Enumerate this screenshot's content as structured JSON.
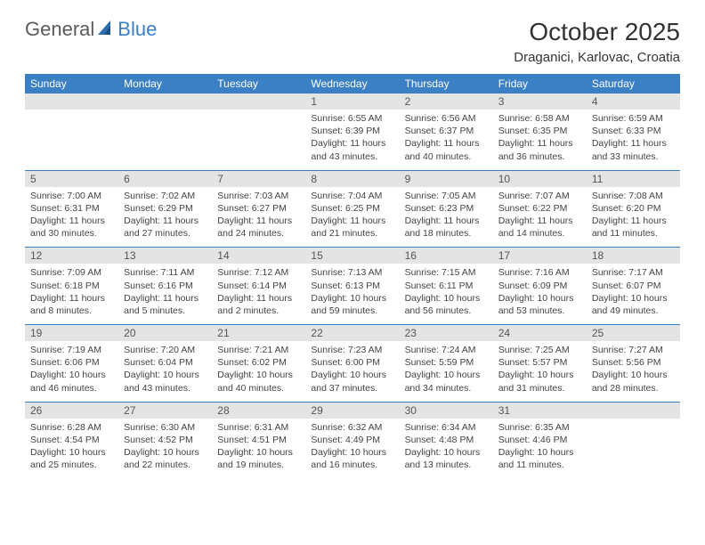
{
  "logo": {
    "general": "General",
    "blue": "Blue"
  },
  "title": "October 2025",
  "location": "Draganici, Karlovac, Croatia",
  "colors": {
    "header_bg": "#3b7fc4",
    "header_fg": "#ffffff",
    "daynum_bg": "#e4e4e4",
    "rule": "#3b7fc4",
    "text": "#444444",
    "logo_gray": "#5a5a5a",
    "logo_blue": "#3b7fc4"
  },
  "weekdays": [
    "Sunday",
    "Monday",
    "Tuesday",
    "Wednesday",
    "Thursday",
    "Friday",
    "Saturday"
  ],
  "weeks": [
    [
      {
        "n": "",
        "sunrise": "",
        "sunset": "",
        "daylight": ""
      },
      {
        "n": "",
        "sunrise": "",
        "sunset": "",
        "daylight": ""
      },
      {
        "n": "",
        "sunrise": "",
        "sunset": "",
        "daylight": ""
      },
      {
        "n": "1",
        "sunrise": "Sunrise: 6:55 AM",
        "sunset": "Sunset: 6:39 PM",
        "daylight": "Daylight: 11 hours and 43 minutes."
      },
      {
        "n": "2",
        "sunrise": "Sunrise: 6:56 AM",
        "sunset": "Sunset: 6:37 PM",
        "daylight": "Daylight: 11 hours and 40 minutes."
      },
      {
        "n": "3",
        "sunrise": "Sunrise: 6:58 AM",
        "sunset": "Sunset: 6:35 PM",
        "daylight": "Daylight: 11 hours and 36 minutes."
      },
      {
        "n": "4",
        "sunrise": "Sunrise: 6:59 AM",
        "sunset": "Sunset: 6:33 PM",
        "daylight": "Daylight: 11 hours and 33 minutes."
      }
    ],
    [
      {
        "n": "5",
        "sunrise": "Sunrise: 7:00 AM",
        "sunset": "Sunset: 6:31 PM",
        "daylight": "Daylight: 11 hours and 30 minutes."
      },
      {
        "n": "6",
        "sunrise": "Sunrise: 7:02 AM",
        "sunset": "Sunset: 6:29 PM",
        "daylight": "Daylight: 11 hours and 27 minutes."
      },
      {
        "n": "7",
        "sunrise": "Sunrise: 7:03 AM",
        "sunset": "Sunset: 6:27 PM",
        "daylight": "Daylight: 11 hours and 24 minutes."
      },
      {
        "n": "8",
        "sunrise": "Sunrise: 7:04 AM",
        "sunset": "Sunset: 6:25 PM",
        "daylight": "Daylight: 11 hours and 21 minutes."
      },
      {
        "n": "9",
        "sunrise": "Sunrise: 7:05 AM",
        "sunset": "Sunset: 6:23 PM",
        "daylight": "Daylight: 11 hours and 18 minutes."
      },
      {
        "n": "10",
        "sunrise": "Sunrise: 7:07 AM",
        "sunset": "Sunset: 6:22 PM",
        "daylight": "Daylight: 11 hours and 14 minutes."
      },
      {
        "n": "11",
        "sunrise": "Sunrise: 7:08 AM",
        "sunset": "Sunset: 6:20 PM",
        "daylight": "Daylight: 11 hours and 11 minutes."
      }
    ],
    [
      {
        "n": "12",
        "sunrise": "Sunrise: 7:09 AM",
        "sunset": "Sunset: 6:18 PM",
        "daylight": "Daylight: 11 hours and 8 minutes."
      },
      {
        "n": "13",
        "sunrise": "Sunrise: 7:11 AM",
        "sunset": "Sunset: 6:16 PM",
        "daylight": "Daylight: 11 hours and 5 minutes."
      },
      {
        "n": "14",
        "sunrise": "Sunrise: 7:12 AM",
        "sunset": "Sunset: 6:14 PM",
        "daylight": "Daylight: 11 hours and 2 minutes."
      },
      {
        "n": "15",
        "sunrise": "Sunrise: 7:13 AM",
        "sunset": "Sunset: 6:13 PM",
        "daylight": "Daylight: 10 hours and 59 minutes."
      },
      {
        "n": "16",
        "sunrise": "Sunrise: 7:15 AM",
        "sunset": "Sunset: 6:11 PM",
        "daylight": "Daylight: 10 hours and 56 minutes."
      },
      {
        "n": "17",
        "sunrise": "Sunrise: 7:16 AM",
        "sunset": "Sunset: 6:09 PM",
        "daylight": "Daylight: 10 hours and 53 minutes."
      },
      {
        "n": "18",
        "sunrise": "Sunrise: 7:17 AM",
        "sunset": "Sunset: 6:07 PM",
        "daylight": "Daylight: 10 hours and 49 minutes."
      }
    ],
    [
      {
        "n": "19",
        "sunrise": "Sunrise: 7:19 AM",
        "sunset": "Sunset: 6:06 PM",
        "daylight": "Daylight: 10 hours and 46 minutes."
      },
      {
        "n": "20",
        "sunrise": "Sunrise: 7:20 AM",
        "sunset": "Sunset: 6:04 PM",
        "daylight": "Daylight: 10 hours and 43 minutes."
      },
      {
        "n": "21",
        "sunrise": "Sunrise: 7:21 AM",
        "sunset": "Sunset: 6:02 PM",
        "daylight": "Daylight: 10 hours and 40 minutes."
      },
      {
        "n": "22",
        "sunrise": "Sunrise: 7:23 AM",
        "sunset": "Sunset: 6:00 PM",
        "daylight": "Daylight: 10 hours and 37 minutes."
      },
      {
        "n": "23",
        "sunrise": "Sunrise: 7:24 AM",
        "sunset": "Sunset: 5:59 PM",
        "daylight": "Daylight: 10 hours and 34 minutes."
      },
      {
        "n": "24",
        "sunrise": "Sunrise: 7:25 AM",
        "sunset": "Sunset: 5:57 PM",
        "daylight": "Daylight: 10 hours and 31 minutes."
      },
      {
        "n": "25",
        "sunrise": "Sunrise: 7:27 AM",
        "sunset": "Sunset: 5:56 PM",
        "daylight": "Daylight: 10 hours and 28 minutes."
      }
    ],
    [
      {
        "n": "26",
        "sunrise": "Sunrise: 6:28 AM",
        "sunset": "Sunset: 4:54 PM",
        "daylight": "Daylight: 10 hours and 25 minutes."
      },
      {
        "n": "27",
        "sunrise": "Sunrise: 6:30 AM",
        "sunset": "Sunset: 4:52 PM",
        "daylight": "Daylight: 10 hours and 22 minutes."
      },
      {
        "n": "28",
        "sunrise": "Sunrise: 6:31 AM",
        "sunset": "Sunset: 4:51 PM",
        "daylight": "Daylight: 10 hours and 19 minutes."
      },
      {
        "n": "29",
        "sunrise": "Sunrise: 6:32 AM",
        "sunset": "Sunset: 4:49 PM",
        "daylight": "Daylight: 10 hours and 16 minutes."
      },
      {
        "n": "30",
        "sunrise": "Sunrise: 6:34 AM",
        "sunset": "Sunset: 4:48 PM",
        "daylight": "Daylight: 10 hours and 13 minutes."
      },
      {
        "n": "31",
        "sunrise": "Sunrise: 6:35 AM",
        "sunset": "Sunset: 4:46 PM",
        "daylight": "Daylight: 10 hours and 11 minutes."
      },
      {
        "n": "",
        "sunrise": "",
        "sunset": "",
        "daylight": ""
      }
    ]
  ]
}
